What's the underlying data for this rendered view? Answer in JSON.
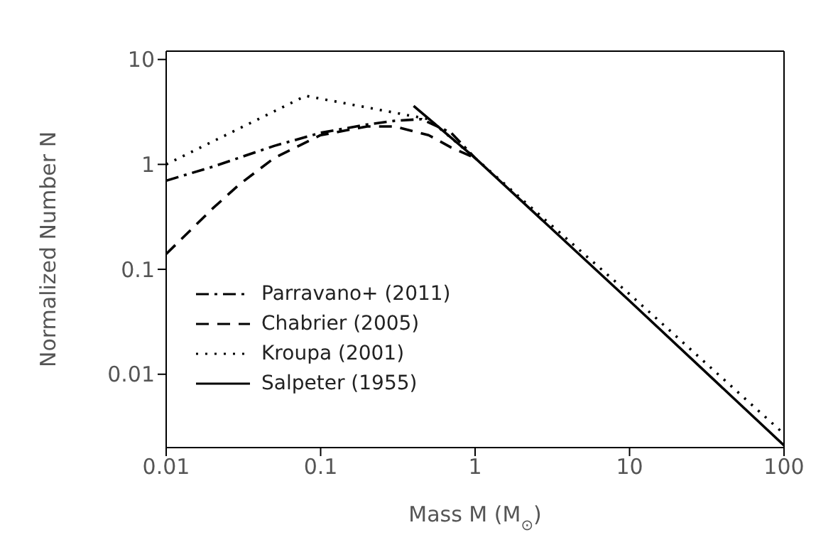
{
  "chart_data": {
    "type": "line",
    "xlabel": "Mass M (M$_{⊙}$)",
    "ylabel": "Normalized Number N",
    "log": "xy",
    "legend": "bottom left",
    "xlim": [
      0.01,
      100
    ],
    "xticks": [
      0.01,
      0.1,
      1,
      10,
      100
    ],
    "ylim": [
      0.002,
      12
    ],
    "yticks": [
      0.01,
      0.1,
      1,
      10
    ],
    "series": [
      {
        "name": "Parravano+ (2011)",
        "color": "#000000",
        "line_style": "dashdot",
        "x": [
          0.01,
          0.02,
          0.05,
          0.1,
          0.2,
          0.3,
          0.45,
          0.7,
          1
        ],
        "values": [
          0.7,
          0.95,
          1.5,
          2.0,
          2.4,
          2.6,
          2.7,
          2.0,
          1.15
        ]
      },
      {
        "name": "Chabrier (2005)",
        "color": "#000000",
        "line_style": "dashed",
        "x": [
          0.01,
          0.02,
          0.03,
          0.05,
          0.1,
          0.2,
          0.3,
          0.5,
          0.7,
          1
        ],
        "values": [
          0.14,
          0.38,
          0.65,
          1.15,
          1.9,
          2.3,
          2.3,
          1.9,
          1.45,
          1.15
        ]
      },
      {
        "name": "Kroupa (2001)",
        "color": "#000000",
        "line_style": "dotted",
        "x": [
          0.01,
          0.08,
          0.5,
          1,
          10,
          100
        ],
        "values": [
          1.0,
          4.5,
          2.7,
          1.15,
          0.058,
          0.0027
        ]
      },
      {
        "name": "Salpeter (1955)",
        "color": "#000000",
        "line_style": "solid",
        "x": [
          0.4,
          1,
          10,
          100
        ],
        "values": [
          3.6,
          1.15,
          0.05,
          0.0021
        ]
      }
    ]
  }
}
